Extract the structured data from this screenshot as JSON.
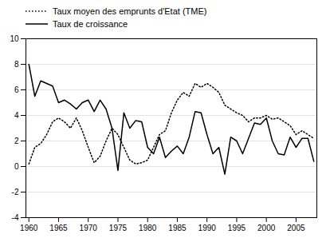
{
  "chart_data": {
    "type": "line",
    "x": [
      1960,
      1961,
      1962,
      1963,
      1964,
      1965,
      1966,
      1967,
      1968,
      1969,
      1970,
      1971,
      1972,
      1973,
      1974,
      1975,
      1976,
      1977,
      1978,
      1979,
      1980,
      1981,
      1982,
      1983,
      1984,
      1985,
      1986,
      1987,
      1988,
      1989,
      1990,
      1991,
      1992,
      1993,
      1994,
      1995,
      1996,
      1997,
      1998,
      1999,
      2000,
      2001,
      2002,
      2003,
      2004,
      2005,
      2006,
      2007,
      2008
    ],
    "series": [
      {
        "name": "Taux moyen des emprunts d'Etat (TME)",
        "color": "#000000",
        "line_style": "dotted",
        "values": [
          0.2,
          1.5,
          1.8,
          2.5,
          3.5,
          3.8,
          3.5,
          3.0,
          3.8,
          2.8,
          1.5,
          0.3,
          0.8,
          2.0,
          3.0,
          2.5,
          1.5,
          0.5,
          0.2,
          0.3,
          0.5,
          1.5,
          2.5,
          2.8,
          4.2,
          5.2,
          5.8,
          5.5,
          6.5,
          6.2,
          6.5,
          6.2,
          5.8,
          4.8,
          4.5,
          4.2,
          4.0,
          3.5,
          3.8,
          3.8,
          4.0,
          3.7,
          3.8,
          3.5,
          3.2,
          2.5,
          2.8,
          2.5,
          2.2
        ]
      },
      {
        "name": "Taux de croissance",
        "color": "#000000",
        "line_style": "solid",
        "values": [
          8.0,
          5.5,
          6.7,
          6.5,
          6.3,
          5.0,
          5.2,
          4.9,
          4.5,
          5.0,
          5.2,
          4.3,
          5.2,
          4.5,
          3.0,
          -0.3,
          4.2,
          3.0,
          3.6,
          3.5,
          1.5,
          1.0,
          2.3,
          0.7,
          1.2,
          1.6,
          1.0,
          2.3,
          4.3,
          4.2,
          2.5,
          1.0,
          1.5,
          -0.6,
          2.3,
          2.0,
          1.0,
          2.2,
          3.4,
          3.3,
          3.8,
          2.0,
          1.0,
          0.9,
          2.3,
          1.5,
          2.2,
          2.2,
          0.4
        ]
      }
    ],
    "xlim": [
      1959.5,
      2008.5
    ],
    "xticks": [
      1960,
      1965,
      1970,
      1975,
      1980,
      1985,
      1990,
      1995,
      2000,
      2005
    ],
    "ylim": [
      -4,
      10
    ],
    "yticks": [
      -4,
      -2,
      0,
      2,
      4,
      6,
      8,
      10
    ],
    "grid": true,
    "legend": "upper left"
  }
}
